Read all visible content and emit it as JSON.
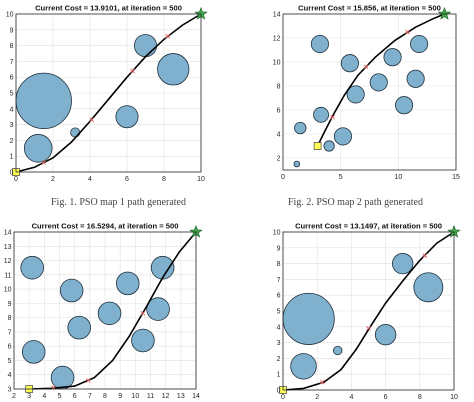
{
  "figure": {
    "captions": [
      "Fig. 1. PSO map 1 path generated",
      "Fig. 2. PSO map 2 path generated"
    ]
  },
  "colors": {
    "obstacle_fill": "#7fb1cf",
    "obstacle_edge": "#1f2f3a",
    "path": "#000000",
    "waypoint": "#e06060",
    "start_marker": "#ffff55",
    "goal_marker": "#3fa84a",
    "grid": "#e2e2e2"
  },
  "chart_data": [
    {
      "type": "scatter",
      "title": "Current Cost = 13.9101, at iteration = 500",
      "xlim": [
        0,
        10
      ],
      "ylim": [
        0,
        10
      ],
      "xticks": [
        0,
        2,
        4,
        6,
        8,
        10
      ],
      "yticks": [
        0,
        1,
        2,
        3,
        4,
        5,
        6,
        7,
        8,
        9,
        10
      ],
      "grid": true,
      "start": [
        0,
        0
      ],
      "goal": [
        10,
        10
      ],
      "obstacles": [
        {
          "x": 1.5,
          "y": 4.5,
          "r": 1.5
        },
        {
          "x": 1.2,
          "y": 1.5,
          "r": 0.75
        },
        {
          "x": 3.2,
          "y": 2.5,
          "r": 0.25
        },
        {
          "x": 6.0,
          "y": 3.5,
          "r": 0.6
        },
        {
          "x": 7.0,
          "y": 8.0,
          "r": 0.6
        },
        {
          "x": 8.5,
          "y": 6.5,
          "r": 0.85
        }
      ],
      "path": [
        [
          0,
          0
        ],
        [
          1,
          0.3
        ],
        [
          2,
          0.9
        ],
        [
          3,
          1.9
        ],
        [
          4,
          3.2
        ],
        [
          5,
          4.6
        ],
        [
          6,
          6.0
        ],
        [
          7,
          7.3
        ],
        [
          8,
          8.4
        ],
        [
          9,
          9.3
        ],
        [
          10,
          10
        ]
      ],
      "waypoints": [
        [
          1.5,
          0.6
        ],
        [
          4.1,
          3.3
        ],
        [
          6.3,
          6.4
        ],
        [
          8.2,
          8.6
        ]
      ]
    },
    {
      "type": "scatter",
      "title": "Current Cost = 15.856, at iteration = 500",
      "xlim": [
        0,
        15
      ],
      "ylim": [
        1,
        14
      ],
      "xticks": [
        0,
        5,
        10,
        15
      ],
      "yticks": [
        2,
        4,
        6,
        8,
        10,
        12,
        14
      ],
      "grid": true,
      "start": [
        3,
        3
      ],
      "goal": [
        14,
        14
      ],
      "obstacles": [
        {
          "x": 1.2,
          "y": 1.5,
          "r": 0.25
        },
        {
          "x": 1.5,
          "y": 4.5,
          "r": 0.5
        },
        {
          "x": 3.2,
          "y": 11.5,
          "r": 0.75
        },
        {
          "x": 3.3,
          "y": 5.6,
          "r": 0.65
        },
        {
          "x": 4.0,
          "y": 3.0,
          "r": 0.45
        },
        {
          "x": 5.2,
          "y": 3.8,
          "r": 0.75
        },
        {
          "x": 5.8,
          "y": 9.9,
          "r": 0.75
        },
        {
          "x": 6.3,
          "y": 7.3,
          "r": 0.75
        },
        {
          "x": 8.3,
          "y": 8.3,
          "r": 0.75
        },
        {
          "x": 9.5,
          "y": 10.4,
          "r": 0.75
        },
        {
          "x": 10.5,
          "y": 6.4,
          "r": 0.75
        },
        {
          "x": 11.5,
          "y": 8.6,
          "r": 0.75
        },
        {
          "x": 11.8,
          "y": 11.5,
          "r": 0.75
        }
      ],
      "path": [
        [
          3,
          3
        ],
        [
          3.5,
          4.0
        ],
        [
          4.3,
          5.5
        ],
        [
          5.3,
          7.2
        ],
        [
          6.5,
          8.9
        ],
        [
          8.0,
          10.4
        ],
        [
          9.7,
          11.8
        ],
        [
          11.5,
          12.9
        ],
        [
          13.0,
          13.6
        ],
        [
          14,
          14
        ]
      ],
      "waypoints": [
        [
          4.3,
          5.4
        ],
        [
          7.2,
          9.6
        ],
        [
          10.8,
          12.5
        ]
      ]
    },
    {
      "type": "scatter",
      "title": "Current Cost = 16.5294, at iteration = 500",
      "xlim": [
        2,
        14
      ],
      "ylim": [
        3,
        14
      ],
      "xticks": [
        2,
        3,
        4,
        5,
        6,
        7,
        8,
        9,
        10,
        11,
        12,
        13,
        14
      ],
      "yticks": [
        3,
        4,
        5,
        6,
        7,
        8,
        9,
        10,
        11,
        12,
        13,
        14
      ],
      "grid": true,
      "start": [
        3,
        3
      ],
      "goal": [
        14,
        14
      ],
      "obstacles": [
        {
          "x": 3.2,
          "y": 11.5,
          "r": 0.75
        },
        {
          "x": 3.3,
          "y": 5.6,
          "r": 0.75
        },
        {
          "x": 5.2,
          "y": 3.8,
          "r": 0.75
        },
        {
          "x": 5.8,
          "y": 9.9,
          "r": 0.75
        },
        {
          "x": 6.3,
          "y": 7.3,
          "r": 0.75
        },
        {
          "x": 8.3,
          "y": 8.3,
          "r": 0.75
        },
        {
          "x": 9.5,
          "y": 10.4,
          "r": 0.75
        },
        {
          "x": 10.5,
          "y": 6.4,
          "r": 0.75
        },
        {
          "x": 11.5,
          "y": 8.6,
          "r": 0.75
        },
        {
          "x": 11.8,
          "y": 11.5,
          "r": 0.75
        }
      ],
      "path": [
        [
          3,
          3
        ],
        [
          4.5,
          3.05
        ],
        [
          6.0,
          3.2
        ],
        [
          7.3,
          3.8
        ],
        [
          8.5,
          5.0
        ],
        [
          9.6,
          6.7
        ],
        [
          10.7,
          8.7
        ],
        [
          11.8,
          10.8
        ],
        [
          12.9,
          12.6
        ],
        [
          14,
          14
        ]
      ],
      "waypoints": [
        [
          4.6,
          3.1
        ],
        [
          6.9,
          3.6
        ],
        [
          10.5,
          8.3
        ]
      ]
    },
    {
      "type": "scatter",
      "title": "Current Cost = 13.1497, at iteration = 500",
      "xlim": [
        0,
        10
      ],
      "ylim": [
        0,
        10
      ],
      "xticks": [
        0,
        2,
        4,
        6,
        8,
        10
      ],
      "yticks": [
        0,
        1,
        2,
        3,
        4,
        5,
        6,
        7,
        8,
        9,
        10
      ],
      "grid": true,
      "start": [
        0,
        0
      ],
      "goal": [
        10,
        10
      ],
      "obstacles": [
        {
          "x": 1.5,
          "y": 4.5,
          "r": 1.5
        },
        {
          "x": 1.2,
          "y": 1.5,
          "r": 0.75
        },
        {
          "x": 3.2,
          "y": 2.5,
          "r": 0.25
        },
        {
          "x": 6.0,
          "y": 3.5,
          "r": 0.6
        },
        {
          "x": 7.0,
          "y": 8.0,
          "r": 0.6
        },
        {
          "x": 8.5,
          "y": 6.5,
          "r": 0.85
        }
      ],
      "path": [
        [
          0,
          0
        ],
        [
          1.2,
          0.1
        ],
        [
          2.4,
          0.5
        ],
        [
          3.4,
          1.3
        ],
        [
          4.3,
          2.6
        ],
        [
          5.1,
          4.0
        ],
        [
          6.0,
          5.5
        ],
        [
          7.0,
          6.9
        ],
        [
          8.0,
          8.2
        ],
        [
          9.0,
          9.3
        ],
        [
          10,
          10
        ]
      ],
      "waypoints": [
        [
          2.3,
          0.5
        ],
        [
          5.0,
          3.9
        ],
        [
          8.3,
          8.5
        ]
      ]
    }
  ]
}
